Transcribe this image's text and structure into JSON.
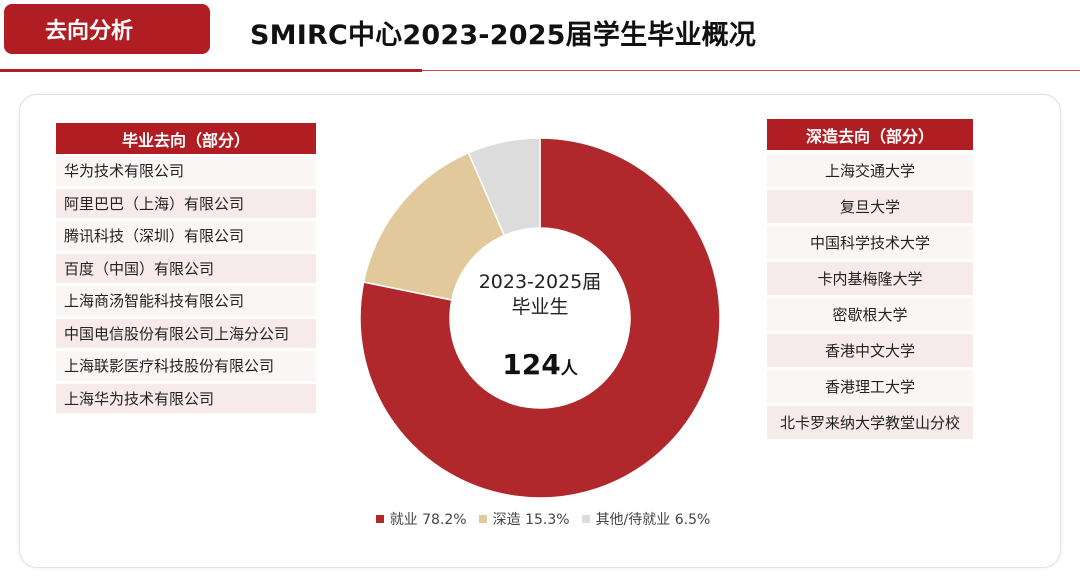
{
  "header": {
    "tag": "去向分析",
    "title": "SMIRC中心2023-2025届学生毕业概况"
  },
  "employment_list": {
    "title": "毕业去向（部分）",
    "items": [
      "华为技术有限公司",
      "阿里巴巴（上海）有限公司",
      "腾讯科技（深圳）有限公司",
      "百度（中国）有限公司",
      "上海商汤智能科技有限公司",
      "中国电信股份有限公司上海分公司",
      "上海联影医疗科技股份有限公司",
      "上海华为技术有限公司"
    ]
  },
  "study_list": {
    "title": "深造去向（部分）",
    "items": [
      "上海交通大学",
      "复旦大学",
      "中国科学技术大学",
      "卡内基梅隆大学",
      "密歇根大学",
      "香港中文大学",
      "香港理工大学",
      "北卡罗来纳大学教堂山分校"
    ]
  },
  "center": {
    "line1": "2023-2025届",
    "line2": "毕业生",
    "count": "124",
    "unit": "人"
  },
  "chart_data": {
    "type": "pie",
    "style": "donut",
    "series": [
      {
        "name": "就业",
        "value": 78.2,
        "label": "78.2%",
        "color": "#b0282c"
      },
      {
        "name": "深造",
        "value": 15.3,
        "label": "15.3%",
        "color": "#e2c99b"
      },
      {
        "name": "其他/待就业",
        "value": 6.5,
        "label": "6.5%",
        "color": "#dcdcdc"
      }
    ],
    "legend_position": "bottom"
  }
}
